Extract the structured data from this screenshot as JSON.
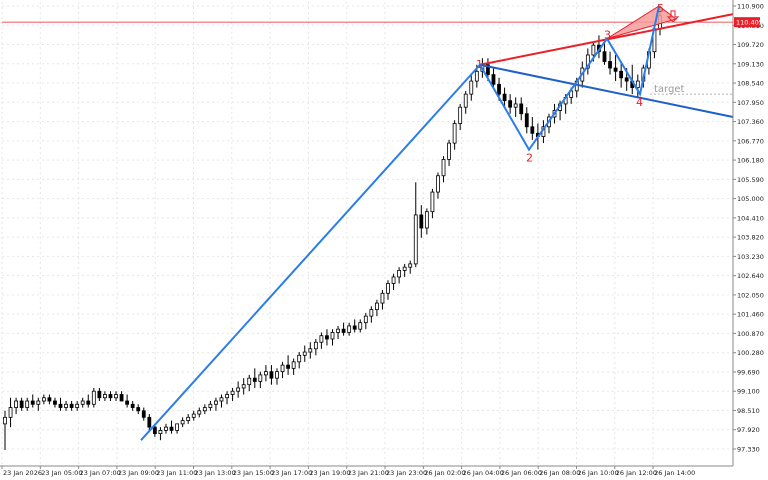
{
  "chart_data": {
    "type": "candlestick",
    "y_tick_labels": [
      "110.900",
      "110.310",
      "109.720",
      "109.130",
      "108.540",
      "107.950",
      "107.360",
      "106.770",
      "106.180",
      "105.590",
      "105.000",
      "104.410",
      "103.820",
      "103.230",
      "102.640",
      "102.050",
      "101.460",
      "100.870",
      "100.280",
      "99.690",
      "99.100",
      "98.510",
      "97.920",
      "97.330"
    ],
    "x_tick_labels": [
      "23 Jan 2026",
      "23 Jan 05:00",
      "23 Jan 07:00",
      "23 Jan 09:00",
      "23 Jan 11:00",
      "23 Jan 13:00",
      "23 Jan 15:00",
      "23 Jan 17:00",
      "23 Jan 19:00",
      "23 Jan 21:00",
      "23 Jan 23:00",
      "26 Jan 02:00",
      "26 Jan 04:00",
      "26 Jan 06:00",
      "26 Jan 08:00",
      "26 Jan 10:00",
      "26 Jan 12:00",
      "26 Jan 14:00"
    ],
    "ylim": [
      96.8,
      111.1
    ],
    "grid": true,
    "current_price": 110.405,
    "current_price_label": "110.405",
    "target_label": "target",
    "target_price": 108.2,
    "candle_count": 160,
    "candles_note_values": [
      [
        98.1,
        98.5,
        97.3,
        98.3
      ],
      [
        98.3,
        98.9,
        98.0,
        98.6
      ],
      [
        98.6,
        98.9,
        98.4,
        98.8
      ],
      [
        98.8,
        98.9,
        98.5,
        98.6
      ],
      [
        98.6,
        98.9,
        98.5,
        98.8
      ],
      [
        98.8,
        99.0,
        98.6,
        98.7
      ],
      [
        98.7,
        98.9,
        98.5,
        98.8
      ],
      [
        98.8,
        99.0,
        98.7,
        98.9
      ],
      [
        98.9,
        99.0,
        98.7,
        98.8
      ],
      [
        98.8,
        98.9,
        98.6,
        98.7
      ],
      [
        98.7,
        98.9,
        98.5,
        98.6
      ],
      [
        98.6,
        98.8,
        98.5,
        98.7
      ],
      [
        98.7,
        98.8,
        98.5,
        98.6
      ],
      [
        98.6,
        98.8,
        98.5,
        98.7
      ],
      [
        98.7,
        98.9,
        98.6,
        98.8
      ],
      [
        98.8,
        99.0,
        98.6,
        98.7
      ],
      [
        98.7,
        99.2,
        98.6,
        99.1
      ],
      [
        99.1,
        99.2,
        98.8,
        98.9
      ],
      [
        98.9,
        99.1,
        98.8,
        99.0
      ],
      [
        99.0,
        99.1,
        98.8,
        98.9
      ],
      [
        98.9,
        99.1,
        98.8,
        99.0
      ],
      [
        99.0,
        99.1,
        98.8,
        98.8
      ],
      [
        98.8,
        99.0,
        98.6,
        98.7
      ],
      [
        98.7,
        98.8,
        98.5,
        98.6
      ],
      [
        98.6,
        98.7,
        98.4,
        98.5
      ],
      [
        98.5,
        98.6,
        98.2,
        98.3
      ],
      [
        98.3,
        98.4,
        97.9,
        98.0
      ],
      [
        98.0,
        98.1,
        97.7,
        97.8
      ],
      [
        97.8,
        98.0,
        97.6,
        97.9
      ],
      [
        97.9,
        98.1,
        97.8,
        98.0
      ],
      [
        98.0,
        98.2,
        97.8,
        97.9
      ],
      [
        97.9,
        98.1,
        97.8,
        98.1
      ],
      [
        98.1,
        98.3,
        98.0,
        98.2
      ],
      [
        98.2,
        98.4,
        98.1,
        98.3
      ],
      [
        98.3,
        98.5,
        98.2,
        98.4
      ],
      [
        98.4,
        98.6,
        98.3,
        98.5
      ],
      [
        98.5,
        98.7,
        98.4,
        98.6
      ],
      [
        98.6,
        98.8,
        98.5,
        98.7
      ],
      [
        98.7,
        98.9,
        98.5,
        98.8
      ],
      [
        98.8,
        99.0,
        98.6,
        98.9
      ],
      [
        98.9,
        99.1,
        98.7,
        99.0
      ],
      [
        99.0,
        99.2,
        98.8,
        99.1
      ],
      [
        99.1,
        99.4,
        98.9,
        99.2
      ],
      [
        99.2,
        99.5,
        99.0,
        99.3
      ],
      [
        99.3,
        99.6,
        99.1,
        99.5
      ],
      [
        99.5,
        99.8,
        99.2,
        99.4
      ],
      [
        99.4,
        99.7,
        99.2,
        99.6
      ],
      [
        99.6,
        99.9,
        99.4,
        99.7
      ],
      [
        99.7,
        99.9,
        99.3,
        99.5
      ],
      [
        99.5,
        99.8,
        99.3,
        99.7
      ],
      [
        99.7,
        100.0,
        99.5,
        99.9
      ],
      [
        99.9,
        100.2,
        99.6,
        99.8
      ],
      [
        99.8,
        100.1,
        99.6,
        100.0
      ],
      [
        100.0,
        100.3,
        99.8,
        100.2
      ],
      [
        100.2,
        100.5,
        100.0,
        100.3
      ],
      [
        100.3,
        100.6,
        100.1,
        100.4
      ],
      [
        100.4,
        100.7,
        100.2,
        100.6
      ],
      [
        100.6,
        100.9,
        100.4,
        100.8
      ],
      [
        100.8,
        101.0,
        100.5,
        100.7
      ],
      [
        100.7,
        101.0,
        100.5,
        100.9
      ],
      [
        100.9,
        101.1,
        100.7,
        101.0
      ],
      [
        101.0,
        101.2,
        100.8,
        100.9
      ],
      [
        100.9,
        101.2,
        100.8,
        101.1
      ],
      [
        101.1,
        101.3,
        100.9,
        101.0
      ],
      [
        101.0,
        101.3,
        100.9,
        101.2
      ],
      [
        101.2,
        101.5,
        101.0,
        101.4
      ],
      [
        101.4,
        101.7,
        101.2,
        101.6
      ],
      [
        101.6,
        101.9,
        101.4,
        101.8
      ],
      [
        101.8,
        102.2,
        101.6,
        102.1
      ],
      [
        102.1,
        102.5,
        101.9,
        102.4
      ],
      [
        102.4,
        102.7,
        102.2,
        102.6
      ],
      [
        102.6,
        102.9,
        102.4,
        102.8
      ],
      [
        102.8,
        103.0,
        102.6,
        102.9
      ],
      [
        102.9,
        103.1,
        102.7,
        103.0
      ],
      [
        103.0,
        105.5,
        102.9,
        104.5
      ],
      [
        104.5,
        104.8,
        103.8,
        104.1
      ],
      [
        104.1,
        104.7,
        103.9,
        104.6
      ],
      [
        104.6,
        105.3,
        104.4,
        105.2
      ],
      [
        105.2,
        105.8,
        105.0,
        105.7
      ],
      [
        105.7,
        106.3,
        105.5,
        106.2
      ],
      [
        106.2,
        106.8,
        106.0,
        106.7
      ],
      [
        106.7,
        107.4,
        106.5,
        107.3
      ],
      [
        107.3,
        107.9,
        107.1,
        107.8
      ],
      [
        107.8,
        108.3,
        107.6,
        108.2
      ],
      [
        108.2,
        108.8,
        108.0,
        108.6
      ],
      [
        108.6,
        109.1,
        108.4,
        108.9
      ],
      [
        108.9,
        109.3,
        108.7,
        109.1
      ],
      [
        109.1,
        109.3,
        108.6,
        108.8
      ],
      [
        108.8,
        109.0,
        108.4,
        108.5
      ],
      [
        108.5,
        108.7,
        108.0,
        108.2
      ],
      [
        108.2,
        108.4,
        107.8,
        108.0
      ],
      [
        108.0,
        108.2,
        107.6,
        107.8
      ],
      [
        107.8,
        108.1,
        107.5,
        107.9
      ],
      [
        107.9,
        108.1,
        107.4,
        107.6
      ],
      [
        107.6,
        107.8,
        107.0,
        107.2
      ],
      [
        107.2,
        107.5,
        106.8,
        107.0
      ],
      [
        107.0,
        107.3,
        106.5,
        106.9
      ],
      [
        106.9,
        107.4,
        106.7,
        107.2
      ],
      [
        107.2,
        107.6,
        107.0,
        107.5
      ],
      [
        107.5,
        107.9,
        107.3,
        107.7
      ],
      [
        107.7,
        108.0,
        107.4,
        107.9
      ],
      [
        107.9,
        108.2,
        107.6,
        108.1
      ],
      [
        108.1,
        108.4,
        107.9,
        108.3
      ],
      [
        108.3,
        108.7,
        108.1,
        108.6
      ],
      [
        108.6,
        109.2,
        108.4,
        109.0
      ],
      [
        109.0,
        109.6,
        108.8,
        109.4
      ],
      [
        109.4,
        109.8,
        109.2,
        109.7
      ],
      [
        109.7,
        110.0,
        109.3,
        109.5
      ],
      [
        109.5,
        109.8,
        109.1,
        109.2
      ],
      [
        109.2,
        109.5,
        108.8,
        109.0
      ],
      [
        109.0,
        109.4,
        108.6,
        108.9
      ],
      [
        108.9,
        109.2,
        108.4,
        108.7
      ],
      [
        108.7,
        109.0,
        108.3,
        108.6
      ],
      [
        108.6,
        109.1,
        108.2,
        108.4
      ],
      [
        108.4,
        108.8,
        108.1,
        108.6
      ],
      [
        108.6,
        109.1,
        108.4,
        109.0
      ],
      [
        109.0,
        109.6,
        108.8,
        109.5
      ],
      [
        109.5,
        110.3,
        109.3,
        110.2
      ],
      [
        110.2,
        110.9,
        110.0,
        110.6
      ]
    ]
  },
  "pattern": {
    "labels": [
      "1",
      "2",
      "3",
      "4",
      "5"
    ],
    "colors": {
      "blue": "#2b7de9",
      "red": "#e8202a",
      "upper_trend": "#e8202a",
      "lower_trend": "#1f5fc8",
      "candle_up": "#ffffff",
      "candle_down": "#000000",
      "grid": "#e6e6e6"
    }
  }
}
